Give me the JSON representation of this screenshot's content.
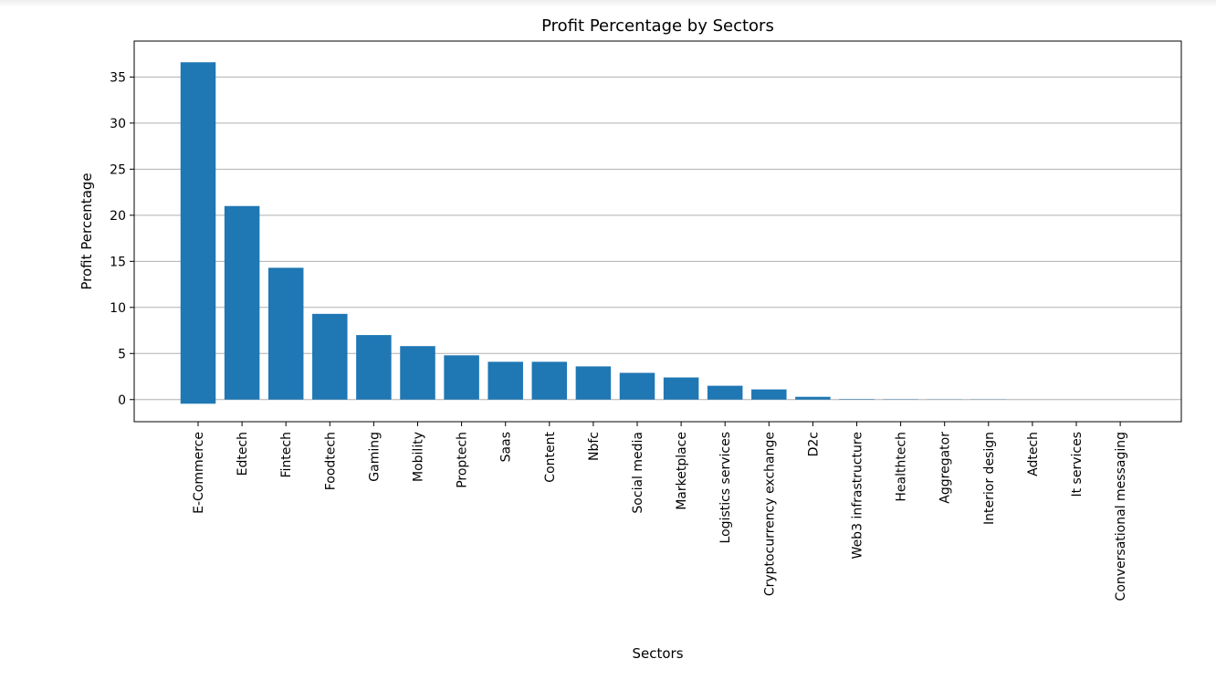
{
  "chart_data": {
    "type": "bar",
    "title": "Profit Percentage by Sectors",
    "xlabel": "Sectors",
    "ylabel": "Profit Percentage",
    "ylim": [
      -2.4,
      38.9
    ],
    "yticks": [
      0,
      5,
      10,
      15,
      20,
      25,
      30,
      35
    ],
    "grid": "y",
    "bar_color": "#1f77b4",
    "categories": [
      "E-Commerce",
      "Edtech",
      "Fintech",
      "Foodtech",
      "Gaming",
      "Mobility",
      "Proptech",
      "Saas",
      "Content",
      "Nbfc",
      "Social media",
      "Marketplace",
      "Logistics services",
      "Cryptocurrency exchange",
      "D2c",
      "Web3 infrastructure",
      "Healthtech",
      "Aggregator",
      "Interior design",
      "Adtech",
      "It services",
      "Conversational messaging"
    ],
    "values": [
      36.6,
      21.0,
      14.3,
      9.3,
      7.0,
      5.8,
      4.8,
      4.1,
      4.1,
      3.6,
      2.9,
      2.4,
      1.5,
      1.1,
      0.3,
      0.05,
      0.03,
      0.02,
      0.02,
      0.01,
      0.01,
      0.01
    ],
    "neg_values": [
      -0.45,
      0,
      0,
      0,
      0,
      0,
      0,
      0,
      0,
      0,
      0,
      0,
      0,
      0,
      0,
      0,
      0,
      0,
      0,
      0,
      0,
      0
    ]
  }
}
